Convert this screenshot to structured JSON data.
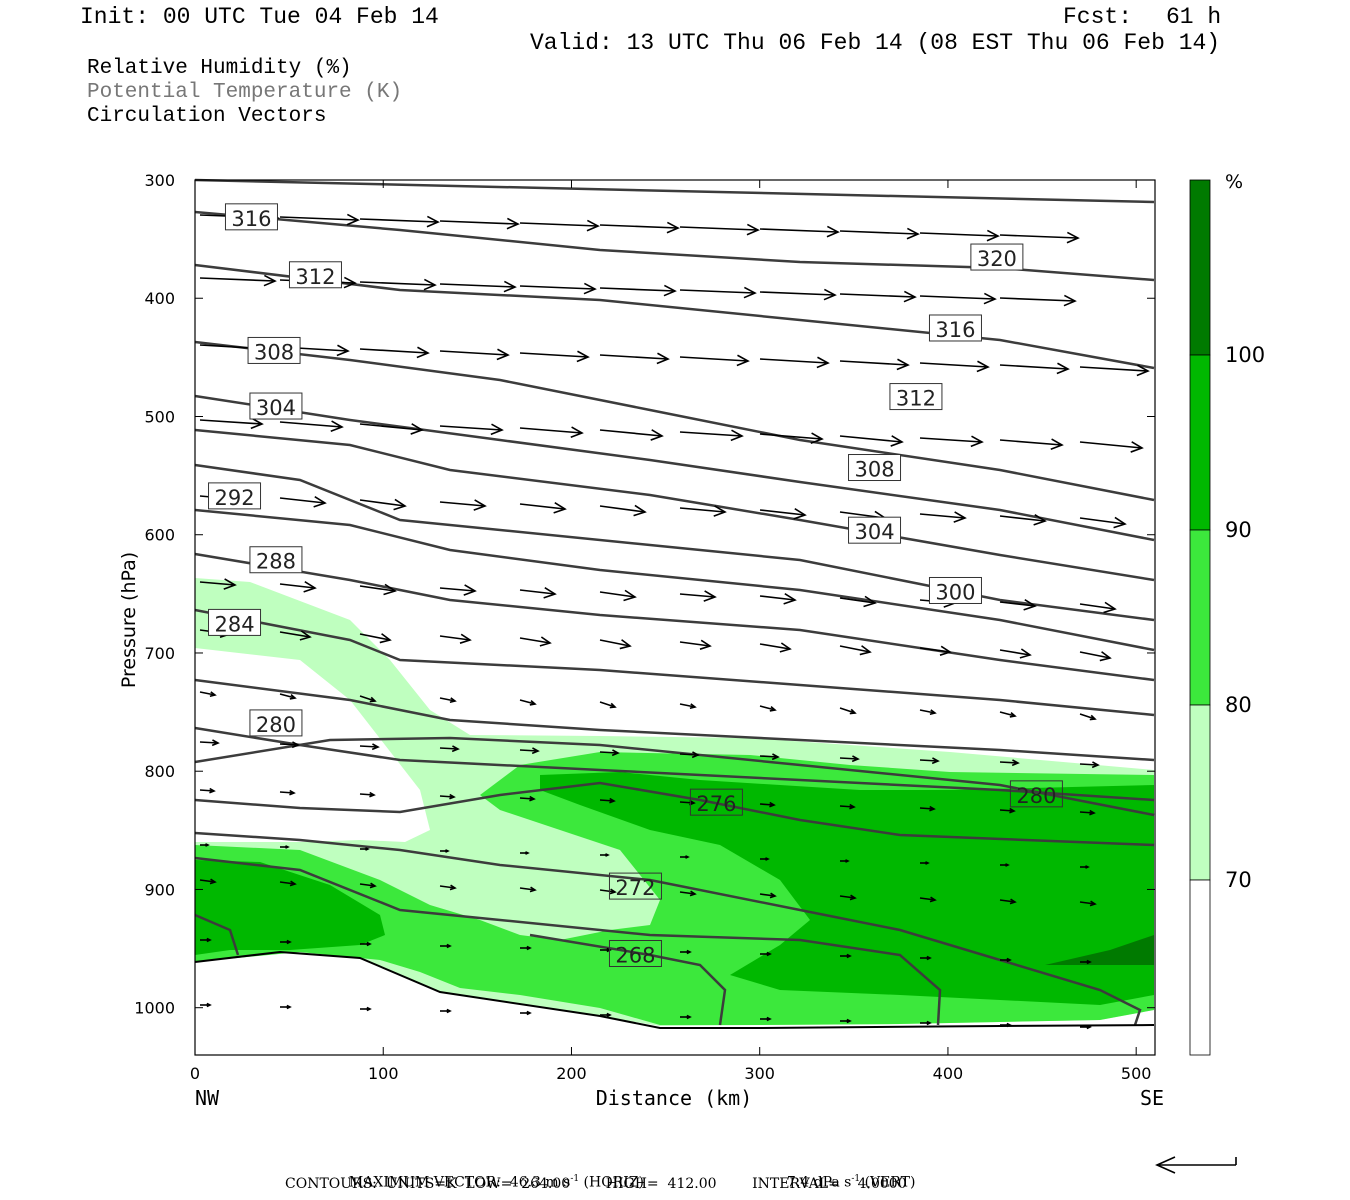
{
  "header": {
    "init": "Init: 00 UTC Tue 04 Feb 14",
    "fcst_label": "Fcst:",
    "fcst_value": "61 h",
    "valid": "Valid: 13 UTC Thu 06 Feb 14 (08 EST Thu 06 Feb 14)",
    "fields": [
      "Relative Humidity (%)",
      "Potential Temperature (K)",
      "Circulation Vectors"
    ]
  },
  "colors": {
    "rh_70": "#bfffbf",
    "rh_80": "#3ce83c",
    "rh_90": "#00b800",
    "rh_100": "#007a00",
    "theta": "#3c3c3c",
    "axis": "#000000"
  },
  "chart_data": {
    "type": "cross-section",
    "xlabel": "Distance (km)",
    "ylabel": "Pressure (hPa)",
    "xlim": [
      0,
      510
    ],
    "ylim": [
      1040,
      300
    ],
    "x_ticks": [
      0,
      100,
      200,
      300,
      400,
      500
    ],
    "y_ticks": [
      300,
      400,
      500,
      600,
      700,
      800,
      900,
      1000
    ],
    "x_end_labels": {
      "left": "NW",
      "right": "SE"
    },
    "colorbar": {
      "unit": "%",
      "levels": [
        70,
        80,
        90,
        100
      ]
    },
    "theta_labels": [
      {
        "text": "316",
        "x": 30,
        "p": 332
      },
      {
        "text": "312",
        "x": 64,
        "p": 381
      },
      {
        "text": "308",
        "x": 42,
        "p": 445
      },
      {
        "text": "304",
        "x": 43,
        "p": 492
      },
      {
        "text": "292",
        "x": 21,
        "p": 568
      },
      {
        "text": "288",
        "x": 43,
        "p": 622
      },
      {
        "text": "284",
        "x": 21,
        "p": 675
      },
      {
        "text": "280",
        "x": 43,
        "p": 760
      },
      {
        "text": "320",
        "x": 426,
        "p": 366
      },
      {
        "text": "316",
        "x": 404,
        "p": 426
      },
      {
        "text": "312",
        "x": 383,
        "p": 484
      },
      {
        "text": "308",
        "x": 361,
        "p": 544
      },
      {
        "text": "304",
        "x": 361,
        "p": 597
      },
      {
        "text": "300",
        "x": 404,
        "p": 648
      },
      {
        "text": "276",
        "x": 277,
        "p": 827
      },
      {
        "text": "280",
        "x": 447,
        "p": 820
      },
      {
        "text": "272",
        "x": 234,
        "p": 898
      },
      {
        "text": "268",
        "x": 234,
        "p": 955
      }
    ]
  },
  "footer": {
    "max_vector": "MAXIMUM VECTOR:  46.3 m s",
    "horiz": " (HORIZ)",
    "vert_val": "7.4 dPa s",
    "vert": " (VERT)",
    "exp": "-1",
    "contours": "CONTOURS:  UNITS=K  LOW=  264.00        HIGH=  412.00        INTERVAL=    4.0000"
  }
}
